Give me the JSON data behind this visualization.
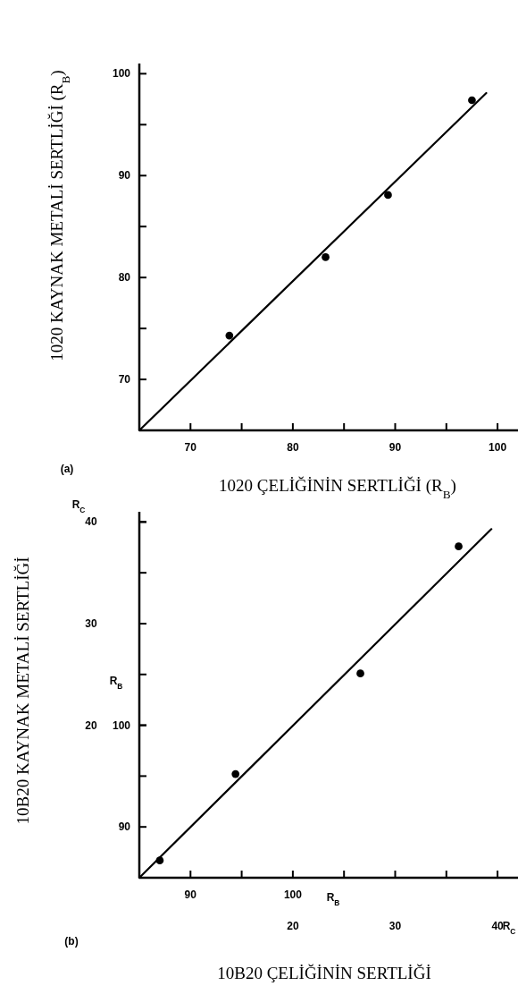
{
  "chart_data": [
    {
      "type": "scatter",
      "xlabel": "1020 ÇELİĞİNİN SERTLİĞİ (R$_{B}$)",
      "ylabel": "1020 KAYNAK METALİ SERTLİĞİ (R$_{B}$)",
      "annotations": [
        "(a)"
      ],
      "xlim": [
        65,
        102
      ],
      "ylim": [
        65,
        101
      ],
      "xticks": [
        70,
        {
          "value": 75,
          "label": null
        },
        80,
        {
          "value": 85,
          "label": null
        },
        90,
        {
          "value": 95,
          "label": null
        },
        100
      ],
      "yticks": [
        70,
        {
          "value": 75,
          "label": null
        },
        80,
        {
          "value": 85,
          "label": null
        },
        90,
        {
          "value": 95,
          "label": null
        },
        100
      ],
      "marker": "circle",
      "grid": false,
      "series": [
        {
          "color": "#000000",
          "x": [
            73.8,
            83.2,
            89.3,
            97.5
          ],
          "values": [
            74.3,
            82.0,
            88.1,
            97.4
          ]
        },
        {
          "type": "line",
          "color": "#000000",
          "marker": "none",
          "x": [
            65,
            98.9
          ],
          "values": [
            65,
            98.1
          ]
        }
      ]
    },
    {
      "type": "scatter",
      "xlabel": "10B20 ÇELİĞİNİN SERTLİĞİ",
      "ylabel": "10B20 KAYNAK METALİ SERTLİĞİ",
      "annotations": [
        "(b)",
        "R$_{C}$",
        "R$_{B}$",
        "R$_{B}$",
        "R$_{C}$"
      ],
      "xlim": [
        85,
        122
      ],
      "ylim": [
        5,
        41
      ],
      "x2lim": [
        5,
        42
      ],
      "y2lim": [
        85,
        121
      ],
      "xticks": [
        90,
        {
          "value": 95,
          "label": null
        },
        100,
        {
          "value": 105,
          "label": null
        },
        {
          "value": 110,
          "label": null
        },
        {
          "value": 115,
          "label": null
        },
        {
          "value": 120,
          "label": null
        }
      ],
      "y2ticks": [
        90,
        {
          "value": 95,
          "label": null
        },
        100,
        {
          "value": 105,
          "label": null
        },
        {
          "value": 110,
          "label": null
        },
        {
          "value": 115,
          "label": null
        },
        {
          "value": 120,
          "label": null
        }
      ],
      "x2ticks": [
        20,
        30,
        40
      ],
      "yticks": [
        20,
        30,
        40
      ],
      "marker": "circle",
      "grid": false,
      "series": [
        {
          "color": "#000000",
          "axis": "y2",
          "x": [
            87.0,
            94.4,
            106.6,
            116.2
          ],
          "values": [
            86.7,
            95.2,
            105.1,
            117.6
          ]
        },
        {
          "type": "line",
          "color": "#000000",
          "axis": "y2",
          "marker": "none",
          "x": [
            85,
            119.4
          ],
          "values": [
            85,
            119.3
          ]
        }
      ]
    }
  ]
}
